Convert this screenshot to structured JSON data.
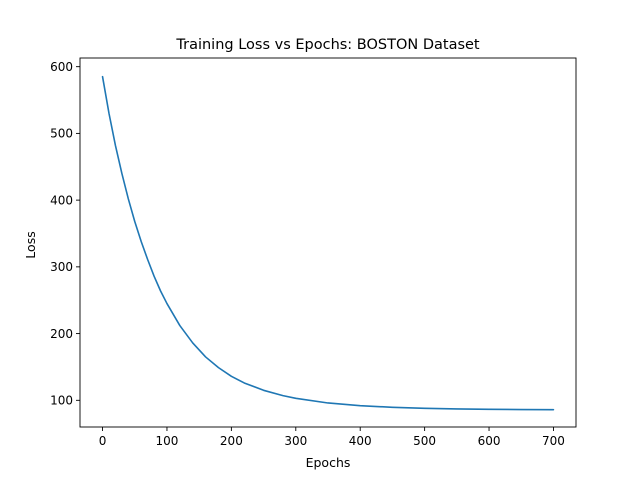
{
  "chart_data": {
    "type": "line",
    "title": "Training Loss vs Epochs: BOSTON Dataset",
    "xlabel": "Epochs",
    "ylabel": "Loss",
    "xlim": [
      -35,
      735
    ],
    "ylim": [
      60,
      613
    ],
    "grid": false,
    "xticks": [
      0,
      100,
      200,
      300,
      400,
      500,
      600,
      700
    ],
    "yticks": [
      100,
      200,
      300,
      400,
      500,
      600
    ],
    "series": [
      {
        "color": "#1f77b4",
        "x": [
          0,
          10,
          20,
          30,
          40,
          50,
          60,
          70,
          80,
          90,
          100,
          120,
          140,
          160,
          180,
          200,
          220,
          250,
          280,
          300,
          350,
          400,
          450,
          500,
          550,
          600,
          650,
          700
        ],
        "y": [
          585,
          530,
          482,
          440,
          402,
          368,
          338,
          311,
          286,
          264,
          245,
          212,
          186,
          165,
          149,
          136,
          126,
          115,
          107,
          103,
          96,
          92,
          89.5,
          88,
          87,
          86.5,
          86.2,
          86
        ]
      }
    ]
  }
}
